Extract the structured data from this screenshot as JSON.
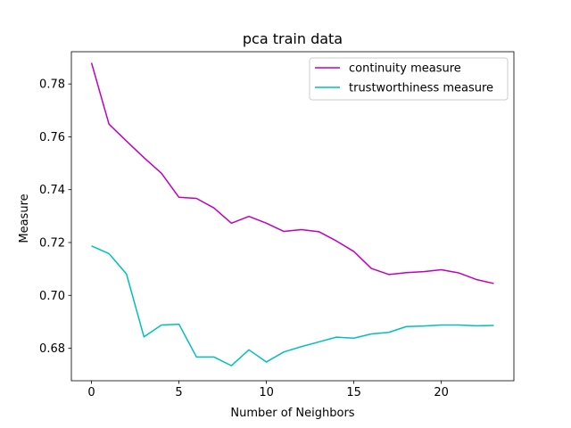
{
  "chart_data": {
    "type": "line",
    "title": "pca train data",
    "xlabel": "Number of Neighbors",
    "ylabel": "Measure",
    "xlim": [
      -1.15,
      24.15
    ],
    "ylim": [
      0.6677,
      0.7922
    ],
    "x_ticks": [
      0,
      5,
      10,
      15,
      20
    ],
    "x_tick_labels": [
      "0",
      "5",
      "10",
      "15",
      "20"
    ],
    "y_ticks": [
      0.68,
      0.7,
      0.72,
      0.74,
      0.76,
      0.78
    ],
    "y_tick_labels": [
      "0.68",
      "0.70",
      "0.72",
      "0.74",
      "0.76",
      "0.78"
    ],
    "grid": false,
    "legend_position": "top-right",
    "x": [
      0,
      1,
      2,
      3,
      4,
      5,
      6,
      7,
      8,
      9,
      10,
      11,
      12,
      13,
      14,
      15,
      16,
      17,
      18,
      19,
      20,
      21,
      22,
      23
    ],
    "series": [
      {
        "name": "continuity measure",
        "color": "#bf00bf",
        "values": [
          0.788,
          0.7648,
          0.7584,
          0.7521,
          0.7462,
          0.7371,
          0.7367,
          0.7331,
          0.7273,
          0.7299,
          0.7273,
          0.7242,
          0.7249,
          0.7241,
          0.7206,
          0.7166,
          0.7102,
          0.7079,
          0.7086,
          0.709,
          0.7097,
          0.7085,
          0.706,
          0.7045
        ]
      },
      {
        "name": "trustworthiness measure",
        "color": "#00bfbf",
        "values": [
          0.7187,
          0.7158,
          0.7081,
          0.6843,
          0.6888,
          0.6891,
          0.6767,
          0.6767,
          0.6734,
          0.6794,
          0.6748,
          0.6786,
          0.6806,
          0.6824,
          0.6842,
          0.6838,
          0.6854,
          0.686,
          0.6882,
          0.6884,
          0.6888,
          0.6888,
          0.6885,
          0.6886
        ]
      }
    ]
  }
}
